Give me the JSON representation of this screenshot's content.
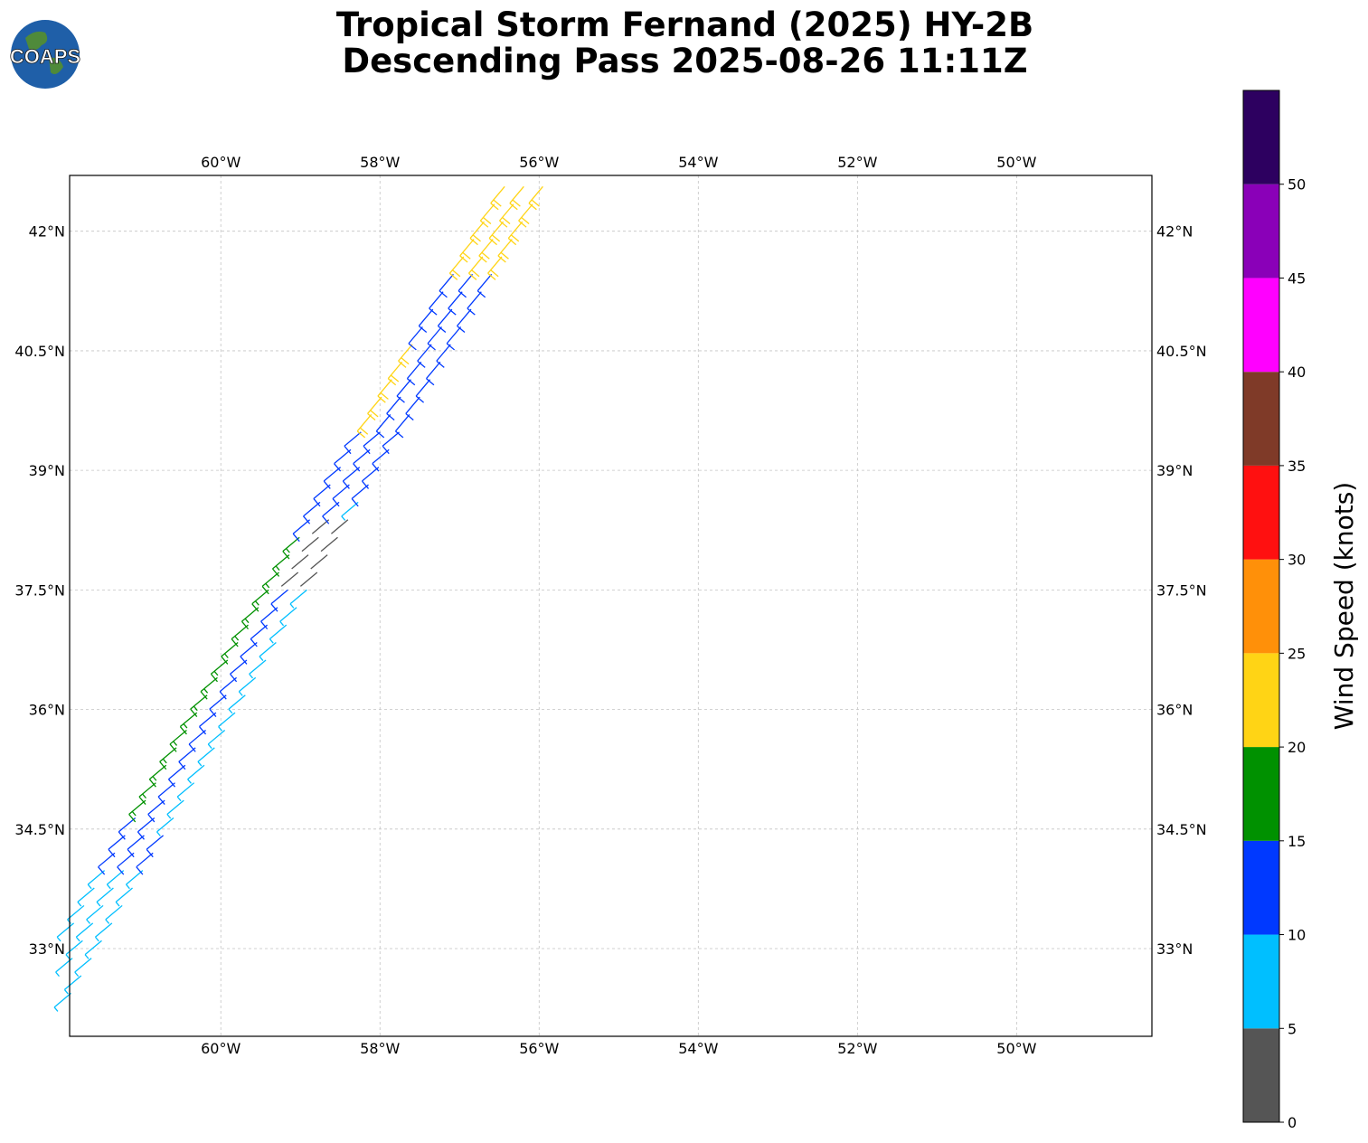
{
  "title": {
    "line1": "Tropical Storm Fernand (2025) HY-2B",
    "line2": "Descending Pass 2025-08-26 11:11Z"
  },
  "logo": {
    "text": "COAPS",
    "icon": "globe-logo-icon"
  },
  "map": {
    "lon_range": [
      -61.9,
      -48.3
    ],
    "lat_range": [
      31.9,
      42.7
    ],
    "lon_ticks": [
      {
        "value": -60,
        "label": "60°W"
      },
      {
        "value": -58,
        "label": "58°W"
      },
      {
        "value": -56,
        "label": "56°W"
      },
      {
        "value": -54,
        "label": "54°W"
      },
      {
        "value": -52,
        "label": "52°W"
      },
      {
        "value": -50,
        "label": "50°W"
      }
    ],
    "lat_ticks": [
      {
        "value": 42,
        "label": "42°N"
      },
      {
        "value": 40.5,
        "label": "40.5°N"
      },
      {
        "value": 39,
        "label": "39°N"
      },
      {
        "value": 37.5,
        "label": "37.5°N"
      },
      {
        "value": 36,
        "label": "36°N"
      },
      {
        "value": 34.5,
        "label": "34.5°N"
      },
      {
        "value": 33,
        "label": "33°N"
      }
    ],
    "gridlines": true
  },
  "colorbar": {
    "label": "Wind Speed (knots)",
    "bins": [
      {
        "min": 0,
        "max": 5,
        "color": "#555555"
      },
      {
        "min": 5,
        "max": 10,
        "color": "#00bfff"
      },
      {
        "min": 10,
        "max": 15,
        "color": "#0039ff"
      },
      {
        "min": 15,
        "max": 20,
        "color": "#009100"
      },
      {
        "min": 20,
        "max": 25,
        "color": "#ffd415"
      },
      {
        "min": 25,
        "max": 30,
        "color": "#ff9009"
      },
      {
        "min": 30,
        "max": 35,
        "color": "#ff1010"
      },
      {
        "min": 35,
        "max": 40,
        "color": "#7f3a28"
      },
      {
        "min": 40,
        "max": 45,
        "color": "#ff00ff"
      },
      {
        "min": 45,
        "max": 50,
        "color": "#8a00b8"
      },
      {
        "min": 50,
        "max": 55,
        "color": "#2d0060"
      }
    ],
    "ticks": [
      0,
      5,
      10,
      15,
      20,
      25,
      30,
      35,
      40,
      45,
      50
    ]
  }
}
